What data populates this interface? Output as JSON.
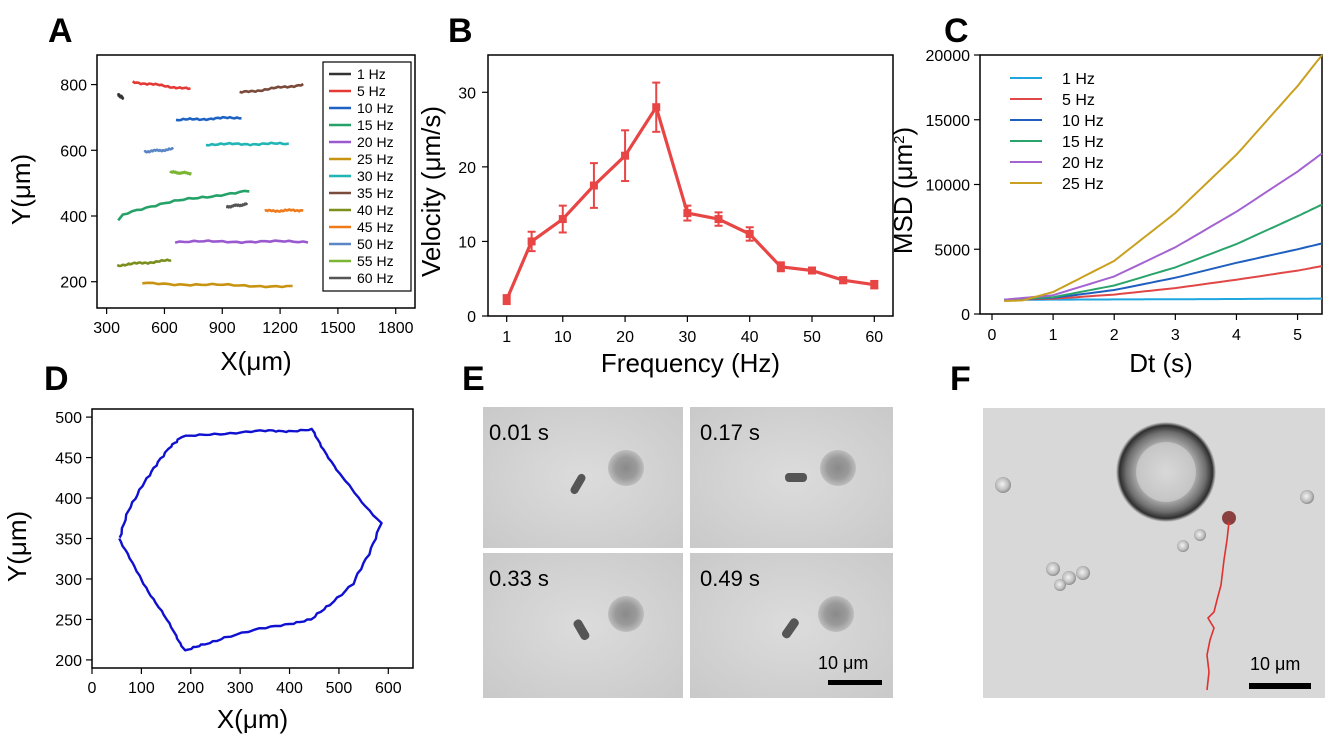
{
  "panels": {
    "A": "A",
    "B": "B",
    "C": "C",
    "D": "D",
    "E": "E",
    "F": "F"
  },
  "micrographs": {
    "E_times": [
      "0.01 s",
      "0.17 s",
      "0.33 s",
      "0.49 s"
    ],
    "E_scale": "10 μm",
    "F_scale": "10 μm"
  },
  "chart_data": [
    {
      "id": "A",
      "type": "line",
      "xlabel": "X(μm)",
      "ylabel": "Y(μm)",
      "xlim": [
        250,
        1900
      ],
      "ylim": [
        120,
        890
      ],
      "xticks": [
        300,
        600,
        900,
        1200,
        1500,
        1800
      ],
      "yticks": [
        200,
        400,
        600,
        800
      ],
      "legend_position": "right",
      "series": [
        {
          "name": "1 Hz",
          "color": "#333333",
          "x0": 360,
          "x1": 385,
          "y0": 768,
          "y1": 760
        },
        {
          "name": "5 Hz",
          "color": "#e53935",
          "x0": 435,
          "x1": 735,
          "y0": 808,
          "y1": 786
        },
        {
          "name": "10 Hz",
          "color": "#1e63c4",
          "x0": 660,
          "x1": 1000,
          "y0": 692,
          "y1": 700
        },
        {
          "name": "15 Hz",
          "color": "#26a269",
          "x0": 360,
          "x1": 1040,
          "y0": 385,
          "y1": 475
        },
        {
          "name": "20 Hz",
          "color": "#9b59d0",
          "x0": 655,
          "x1": 1345,
          "y0": 322,
          "y1": 322
        },
        {
          "name": "25 Hz",
          "color": "#c79310",
          "x0": 485,
          "x1": 1265,
          "y0": 195,
          "y1": 185
        },
        {
          "name": "30 Hz",
          "color": "#21b5b5",
          "x0": 815,
          "x1": 1245,
          "y0": 618,
          "y1": 620
        },
        {
          "name": "35 Hz",
          "color": "#7a4a3a",
          "x0": 990,
          "x1": 1320,
          "y0": 775,
          "y1": 800
        },
        {
          "name": "40 Hz",
          "color": "#7a8f1e",
          "x0": 355,
          "x1": 635,
          "y0": 250,
          "y1": 265
        },
        {
          "name": "45 Hz",
          "color": "#f07a1a",
          "x0": 1120,
          "x1": 1320,
          "y0": 415,
          "y1": 418
        },
        {
          "name": "50 Hz",
          "color": "#5a86c6",
          "x0": 495,
          "x1": 645,
          "y0": 596,
          "y1": 603
        },
        {
          "name": "55 Hz",
          "color": "#7ab534",
          "x0": 630,
          "x1": 740,
          "y0": 533,
          "y1": 530
        },
        {
          "name": "60 Hz",
          "color": "#555555",
          "x0": 920,
          "x1": 1030,
          "y0": 428,
          "y1": 436
        }
      ]
    },
    {
      "id": "B",
      "type": "line",
      "xlabel": "Frequency (Hz)",
      "ylabel": "Velocity (μm/s)",
      "xlim": [
        -2,
        63
      ],
      "ylim": [
        0,
        35
      ],
      "xticks": [
        1,
        10,
        20,
        30,
        40,
        50,
        60
      ],
      "yticks": [
        0,
        10,
        20,
        30
      ],
      "color": "#e84545",
      "x": [
        1,
        5,
        10,
        15,
        20,
        25,
        30,
        35,
        40,
        45,
        50,
        55,
        60
      ],
      "y": [
        2.2,
        10.0,
        13.0,
        17.5,
        21.5,
        28.0,
        13.8,
        13.0,
        11.0,
        6.6,
        6.1,
        4.8,
        4.2
      ],
      "err": [
        0.6,
        1.3,
        1.8,
        3.0,
        3.4,
        3.3,
        1.0,
        0.9,
        0.9,
        0.6,
        0.3,
        0.4,
        0.5
      ]
    },
    {
      "id": "C",
      "type": "line",
      "xlabel": "Dt (s)",
      "ylabel": "MSD (μm²)",
      "ylabel_main": "MSD (μm",
      "ylabel_sup": "2",
      "ylabel_end": ")",
      "xlim": [
        0,
        5.4
      ],
      "ylim": [
        0,
        20000
      ],
      "xticks": [
        0,
        1,
        2,
        3,
        4,
        5
      ],
      "yticks": [
        0,
        5000,
        10000,
        15000,
        20000
      ],
      "legend_position": "top-left",
      "series": [
        {
          "name": "1 Hz",
          "color": "#1fa6e0",
          "x": [
            0.2,
            1,
            2,
            3,
            4,
            5,
            5.4
          ],
          "y": [
            1100,
            1110,
            1125,
            1140,
            1160,
            1180,
            1190
          ]
        },
        {
          "name": "5 Hz",
          "color": "#e04848",
          "x": [
            0.2,
            1,
            2,
            3,
            4,
            5,
            5.4
          ],
          "y": [
            1100,
            1180,
            1500,
            2000,
            2650,
            3350,
            3700
          ]
        },
        {
          "name": "10 Hz",
          "color": "#1e5fbf",
          "x": [
            0.2,
            1,
            2,
            3,
            4,
            5,
            5.4
          ],
          "y": [
            1100,
            1250,
            1850,
            2800,
            3950,
            5000,
            5450
          ]
        },
        {
          "name": "15 Hz",
          "color": "#2aa46a",
          "x": [
            0.2,
            1,
            2,
            3,
            4,
            5,
            5.4
          ],
          "y": [
            1100,
            1300,
            2200,
            3600,
            5400,
            7550,
            8450
          ]
        },
        {
          "name": "20 Hz",
          "color": "#a463d0",
          "x": [
            0.2,
            1,
            2,
            3,
            4,
            5,
            5.4
          ],
          "y": [
            1100,
            1450,
            2900,
            5150,
            7900,
            11000,
            12400
          ]
        },
        {
          "name": "25 Hz",
          "color": "#c9a020",
          "x": [
            0.2,
            0.5,
            1,
            2,
            3,
            4,
            5,
            5.4
          ],
          "y": [
            1000,
            1050,
            1700,
            4100,
            7800,
            12300,
            17600,
            20000
          ]
        }
      ]
    },
    {
      "id": "D",
      "type": "line",
      "xlabel": "X(μm)",
      "ylabel": "Y(μm)",
      "xlim": [
        0,
        650
      ],
      "ylim": [
        190,
        510
      ],
      "xticks": [
        0,
        100,
        200,
        300,
        400,
        500,
        600
      ],
      "yticks": [
        200,
        250,
        300,
        350,
        400,
        450,
        500
      ],
      "color": "#1010d0",
      "x": [
        55,
        75,
        100,
        130,
        160,
        180,
        240,
        300,
        360,
        400,
        445,
        470,
        500,
        540,
        585,
        560,
        530,
        480,
        445,
        400,
        340,
        270,
        220,
        190,
        170,
        140,
        110,
        80,
        55
      ],
      "y": [
        350,
        385,
        415,
        440,
        465,
        475,
        479,
        481,
        483,
        483,
        484,
        460,
        430,
        400,
        370,
        330,
        295,
        268,
        250,
        245,
        238,
        228,
        218,
        211,
        230,
        260,
        290,
        320,
        350
      ]
    }
  ]
}
